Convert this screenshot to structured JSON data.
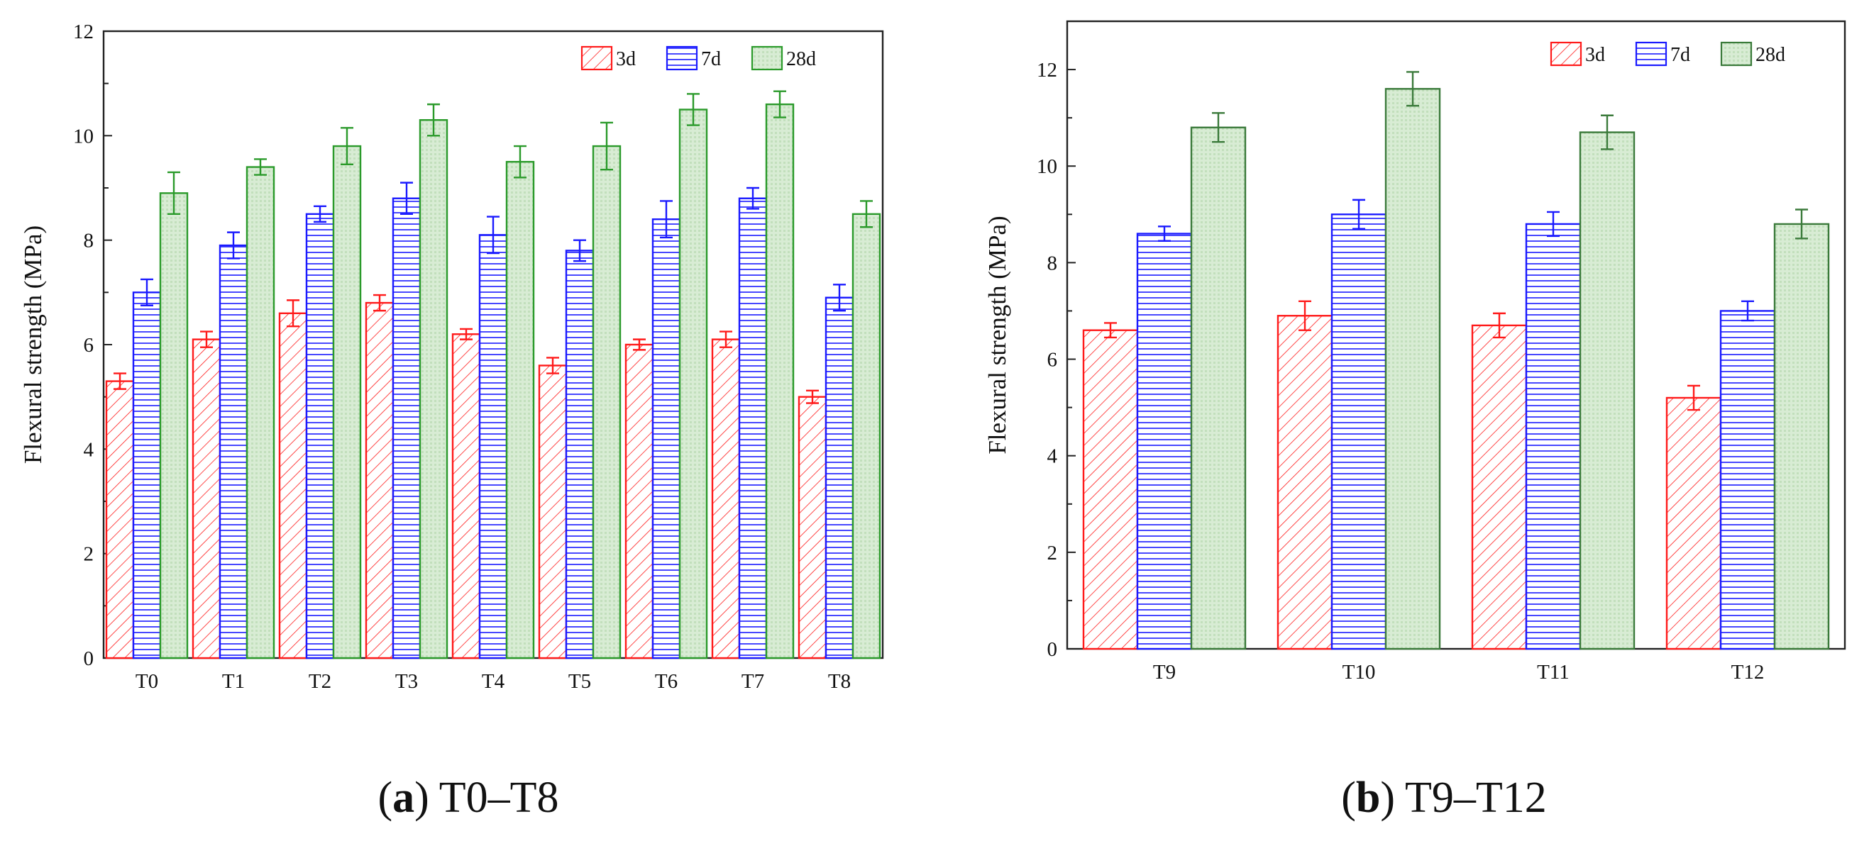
{
  "chart_data": [
    {
      "type": "bar",
      "caption": {
        "letter": "a",
        "open": "(",
        "close": ")",
        "text": "T0–T8"
      },
      "ylabel": "Flexural strength (MPa)",
      "xlabel": "",
      "ylim": [
        0,
        12
      ],
      "yticks": [
        0,
        2,
        4,
        6,
        8,
        10,
        12
      ],
      "grid": false,
      "legend_position": "top-right",
      "categories": [
        "T0",
        "T1",
        "T2",
        "T3",
        "T4",
        "T5",
        "T6",
        "T7",
        "T8"
      ],
      "series": [
        {
          "name": "3d",
          "color": "#ff1a1a",
          "pattern": "diagonal-hatch",
          "values": [
            5.3,
            6.1,
            6.6,
            6.8,
            6.2,
            5.6,
            6.0,
            6.1,
            5.0
          ],
          "errors": [
            0.15,
            0.15,
            0.25,
            0.15,
            0.1,
            0.15,
            0.1,
            0.15,
            0.12
          ]
        },
        {
          "name": "7d",
          "color": "#1a1aff",
          "pattern": "horizontal-lines",
          "values": [
            7.0,
            7.9,
            8.5,
            8.8,
            8.1,
            7.8,
            8.4,
            8.8,
            6.9
          ],
          "errors": [
            0.25,
            0.25,
            0.15,
            0.3,
            0.35,
            0.2,
            0.35,
            0.2,
            0.25
          ]
        },
        {
          "name": "28d",
          "color": "#2a9a2a",
          "pattern": "fine-fill",
          "values": [
            8.9,
            9.4,
            9.8,
            10.3,
            9.5,
            9.8,
            10.5,
            10.6,
            8.5
          ],
          "errors": [
            0.4,
            0.15,
            0.35,
            0.3,
            0.3,
            0.45,
            0.3,
            0.25,
            0.25
          ]
        }
      ]
    },
    {
      "type": "bar",
      "caption": {
        "letter": "b",
        "open": "(",
        "close": ")",
        "text": "T9–T12"
      },
      "ylabel": "Flexural strength (MPa)",
      "xlabel": "",
      "ylim": [
        0,
        13
      ],
      "yticks": [
        0,
        2,
        4,
        6,
        8,
        10,
        12
      ],
      "grid": false,
      "legend_position": "top-right",
      "categories": [
        "T9",
        "T10",
        "T11",
        "T12"
      ],
      "series": [
        {
          "name": "3d",
          "color": "#ff1a1a",
          "pattern": "diagonal-hatch",
          "values": [
            6.6,
            6.9,
            6.7,
            5.2
          ],
          "errors": [
            0.15,
            0.3,
            0.25,
            0.25
          ]
        },
        {
          "name": "7d",
          "color": "#1a1aff",
          "pattern": "horizontal-lines",
          "values": [
            8.6,
            9.0,
            8.8,
            7.0
          ],
          "errors": [
            0.15,
            0.3,
            0.25,
            0.2
          ]
        },
        {
          "name": "28d",
          "color": "#3a7a3a",
          "pattern": "fine-fill",
          "values": [
            10.8,
            11.6,
            10.7,
            8.8
          ],
          "errors": [
            0.3,
            0.35,
            0.35,
            0.3
          ]
        }
      ]
    }
  ]
}
